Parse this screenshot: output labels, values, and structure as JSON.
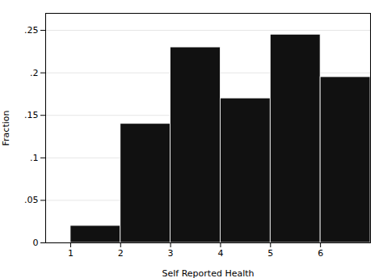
{
  "chart_data": {
    "type": "histogram",
    "bins": [
      1,
      2,
      3,
      4,
      5,
      6,
      7
    ],
    "values": [
      0.02,
      0.14,
      0.23,
      0.17,
      0.245,
      0.195
    ],
    "xlabel": "Self Reported Health",
    "ylabel": "Fraction",
    "xlim": [
      0.5,
      7.0
    ],
    "xticks": [
      1,
      2,
      3,
      4,
      5,
      6
    ],
    "ylim": [
      0,
      0.27
    ],
    "yticks": [
      0,
      {
        "value": 0.05,
        "label": ".05"
      },
      {
        "value": 0.1,
        "label": ".1"
      },
      {
        "value": 0.15,
        "label": ".15"
      },
      {
        "value": 0.2,
        "label": ".2"
      },
      {
        "value": 0.25,
        "label": ".25"
      }
    ],
    "color": "#111111",
    "grid": true
  }
}
